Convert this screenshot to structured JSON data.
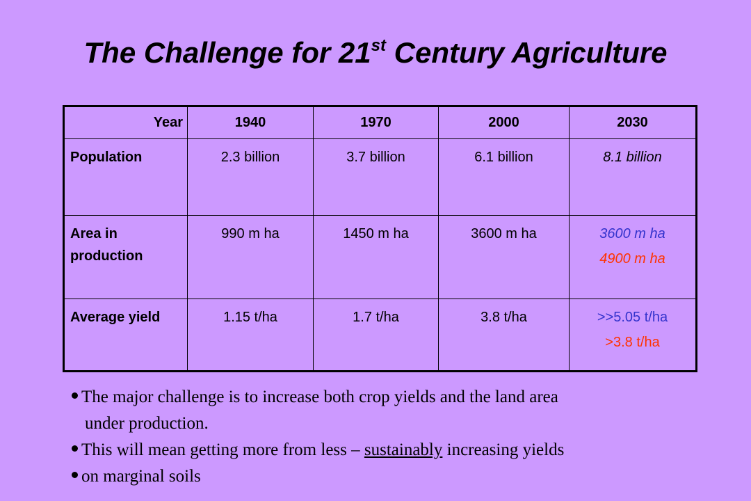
{
  "title": {
    "before": "The Challenge for 21",
    "sup": "st",
    "after": " Century Agriculture"
  },
  "table": {
    "header": {
      "label": "Year",
      "years": [
        "1940",
        "1970",
        "2000",
        "2030"
      ]
    },
    "population": {
      "label": "Population",
      "values": [
        "2.3 billion",
        "3.7 billion",
        "6.1 billion",
        "8.1 billion"
      ]
    },
    "area": {
      "label": "Area in production",
      "values": [
        "990 m ha",
        "1450 m ha",
        "3600 m ha"
      ],
      "projection_primary": "3600 m ha",
      "projection_alternate": "4900 m ha"
    },
    "yield": {
      "label": "Average yield",
      "values": [
        "1.15 t/ha",
        "1.7 t/ha",
        "3.8 t/ha"
      ],
      "projection_primary": ">>5.05 t/ha",
      "projection_alternate": ">3.8 t/ha"
    }
  },
  "bullets": {
    "b1_line1": "The major challenge is to increase both crop yields and the land area",
    "b1_line2": "under production.",
    "b2_before": "This will mean getting more from less – ",
    "b2_underlined": "sustainably",
    "b2_after": " increasing yields",
    "b3": "on marginal soils"
  },
  "colors": {
    "background": "#cc99ff",
    "projection_blue": "#3333cc",
    "projection_red": "#ff3300"
  }
}
